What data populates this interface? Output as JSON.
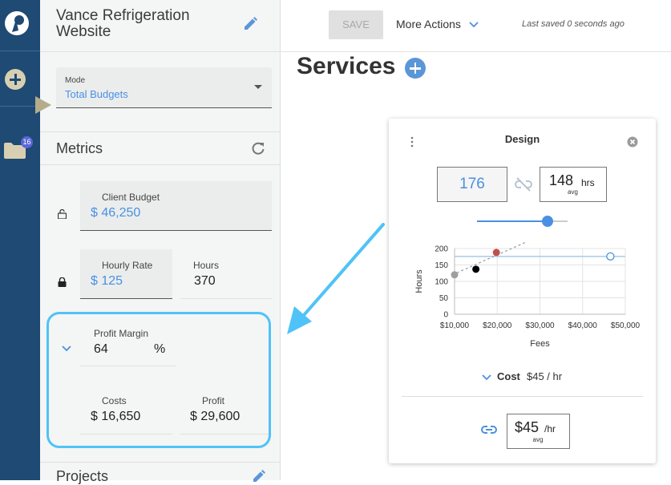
{
  "project": {
    "title": "Vance Refrigeration Website"
  },
  "toolbar": {
    "save_label": "SAVE",
    "more_actions_label": "More Actions",
    "last_saved": "Last saved 0 seconds ago"
  },
  "nav": {
    "folder_badge": "16"
  },
  "mode": {
    "label": "Mode",
    "value": "Total Budgets"
  },
  "metrics": {
    "title": "Metrics",
    "client_budget": {
      "label": "Client Budget",
      "value": "$ 46,250"
    },
    "hourly_rate": {
      "label": "Hourly Rate",
      "value": "$ 125"
    },
    "hours": {
      "label": "Hours",
      "value": "370"
    },
    "profit_margin": {
      "label": "Profit Margin",
      "value": "64",
      "unit": "%"
    },
    "costs": {
      "label": "Costs",
      "value": "$ 16,650"
    },
    "profit": {
      "label": "Profit",
      "value": "$ 29,600"
    }
  },
  "projects": {
    "title": "Projects"
  },
  "services": {
    "title": "Services"
  },
  "card": {
    "title": "Design",
    "entered_hours": "176",
    "avg_hours": "148",
    "avg_hours_unit": "hrs",
    "avg_label": "avg",
    "slider_level": 0.78,
    "cost_label": "Cost",
    "cost_value": "$45 / hr",
    "rate_value": "$45",
    "rate_unit": "/hr",
    "rate_avg_label": "avg"
  },
  "colors": {
    "rail": "#1e4a73",
    "accent": "#4a90e2",
    "highlight": "#4fc3f7",
    "point_red": "#c0504d"
  },
  "chart_data": {
    "type": "scatter",
    "xlabel": "Fees",
    "ylabel": "Hours",
    "xlim": [
      10000,
      50000
    ],
    "ylim": [
      0,
      200
    ],
    "x_ticks": [
      "$10,000",
      "$20,000",
      "$30,000",
      "$40,000",
      "$50,000"
    ],
    "y_ticks": [
      "0",
      "50",
      "100",
      "150",
      "200"
    ],
    "grid": true,
    "reference_line": {
      "y": 176
    },
    "trend_line": {
      "x": [
        9500,
        26500
      ],
      "y": [
        120,
        218
      ]
    },
    "points": [
      {
        "x": 10000,
        "y": 120,
        "color": "#9e9e9e"
      },
      {
        "x": 15000,
        "y": 137,
        "color": "#000000"
      },
      {
        "x": 19800,
        "y": 188,
        "color": "#c0504d"
      },
      {
        "x": 46500,
        "y": 176,
        "color": "hollow"
      }
    ]
  }
}
